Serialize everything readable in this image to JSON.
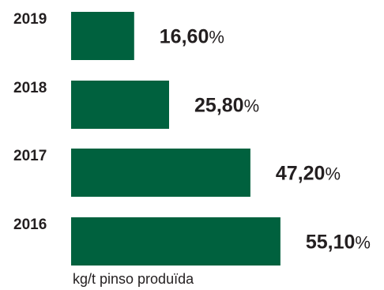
{
  "chart_data": {
    "type": "bar",
    "orientation": "horizontal",
    "categories": [
      "2019",
      "2018",
      "2017",
      "2016"
    ],
    "values": [
      16.6,
      25.8,
      47.2,
      55.1
    ],
    "value_labels": [
      "16,60",
      "25,80",
      "47,20",
      "55,10"
    ],
    "value_suffix": "%",
    "unit_label": "kg/t pinso produïda",
    "bar_color": "#00613e",
    "xlim": [
      0,
      57
    ]
  }
}
